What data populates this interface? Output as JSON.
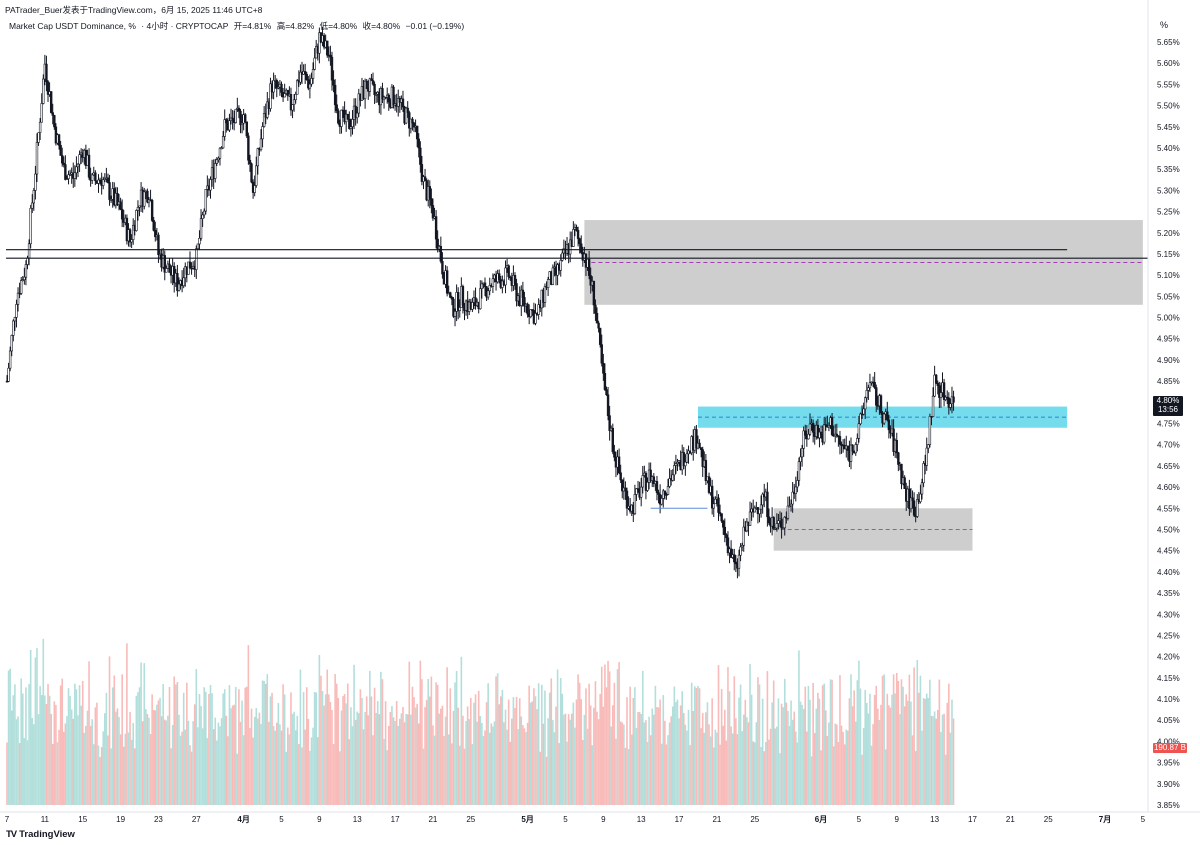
{
  "header": {
    "author": "PATrader_Buer发表于TradingView.com，6月 15, 2025 11:46 UTC+8",
    "symbol": "Market Cap USDT Dominance, %",
    "interval": "· 4小时 · CRYPTOCAP",
    "open": "开=4.81%",
    "high": "高=4.82%",
    "low": "低=4.80%",
    "close": "收=4.80%",
    "change": "−0.01 (−0.19%)"
  },
  "price_axis": {
    "unit": "%",
    "ticks": [
      "5.65%",
      "5.60%",
      "5.55%",
      "5.50%",
      "5.45%",
      "5.40%",
      "5.35%",
      "5.30%",
      "5.25%",
      "5.20%",
      "5.15%",
      "5.10%",
      "5.05%",
      "5.00%",
      "4.95%",
      "4.90%",
      "4.85%",
      "4.80%",
      "4.75%",
      "4.70%",
      "4.65%",
      "4.60%",
      "4.55%",
      "4.50%",
      "4.45%",
      "4.40%",
      "4.35%",
      "4.30%",
      "4.25%",
      "4.20%",
      "4.15%",
      "4.10%",
      "4.05%",
      "4.00%",
      "3.95%",
      "3.90%",
      "3.85%"
    ],
    "last_price": "4.80%",
    "countdown": "13:56",
    "volume_value": "190.87 B"
  },
  "time_axis": {
    "labels": [
      "7",
      "11",
      "15",
      "19",
      "23",
      "27",
      "4月",
      "5",
      "9",
      "13",
      "17",
      "21",
      "25",
      "5月",
      "5",
      "9",
      "13",
      "17",
      "21",
      "25",
      "6月",
      "5",
      "9",
      "13",
      "17",
      "21",
      "25",
      "7月",
      "5"
    ]
  },
  "branding": {
    "name": "TradingView",
    "mark": "TV"
  },
  "colors": {
    "up": "#26a69a",
    "down": "#ef5350",
    "candle_body": "#131722",
    "gray_zone": "#bdbdbd",
    "cyan_zone": "#5dd6ea",
    "dashed_line": "#9c27b0"
  },
  "chart_data": {
    "type": "candlestick",
    "symbol": "Market Cap USDT Dominance",
    "interval": "4小时",
    "y_unit": "%",
    "ylim": [
      3.85,
      5.67
    ],
    "x_range": [
      "2025-03-07",
      "2025-07-05"
    ],
    "last_close": 4.8,
    "path_points": [
      [
        "03-07",
        4.85
      ],
      [
        "03-08",
        5.05
      ],
      [
        "03-09",
        5.12
      ],
      [
        "03-10",
        5.35
      ],
      [
        "03-11",
        5.6
      ],
      [
        "03-12",
        5.45
      ],
      [
        "03-13",
        5.35
      ],
      [
        "03-14",
        5.33
      ],
      [
        "03-15",
        5.4
      ],
      [
        "03-16",
        5.32
      ],
      [
        "03-17",
        5.33
      ],
      [
        "03-19",
        5.25
      ],
      [
        "03-20",
        5.18
      ],
      [
        "03-21",
        5.28
      ],
      [
        "03-22",
        5.3
      ],
      [
        "03-23",
        5.15
      ],
      [
        "03-25",
        5.08
      ],
      [
        "03-26",
        5.12
      ],
      [
        "03-27",
        5.14
      ],
      [
        "03-28",
        5.28
      ],
      [
        "03-30",
        5.45
      ],
      [
        "04-01",
        5.48
      ],
      [
        "04-02",
        5.3
      ],
      [
        "04-03",
        5.45
      ],
      [
        "04-04",
        5.55
      ],
      [
        "04-06",
        5.5
      ],
      [
        "04-07",
        5.58
      ],
      [
        "04-08",
        5.55
      ],
      [
        "04-09",
        5.66
      ],
      [
        "04-10",
        5.62
      ],
      [
        "04-11",
        5.48
      ],
      [
        "04-12",
        5.45
      ],
      [
        "04-13",
        5.5
      ],
      [
        "04-14",
        5.55
      ],
      [
        "04-15",
        5.52
      ],
      [
        "04-17",
        5.52
      ],
      [
        "04-18",
        5.48
      ],
      [
        "04-19",
        5.45
      ],
      [
        "04-20",
        5.32
      ],
      [
        "04-21",
        5.25
      ],
      [
        "04-22",
        5.12
      ],
      [
        "04-23",
        5.02
      ],
      [
        "04-24",
        5.05
      ],
      [
        "04-25",
        5.02
      ],
      [
        "04-27",
        5.08
      ],
      [
        "04-29",
        5.1
      ],
      [
        "04-30",
        5.05
      ],
      [
        "05-02",
        5.0
      ],
      [
        "05-03",
        5.08
      ],
      [
        "05-04",
        5.1
      ],
      [
        "05-05",
        5.15
      ],
      [
        "05-06",
        5.2
      ],
      [
        "05-07",
        5.15
      ],
      [
        "05-08",
        5.05
      ],
      [
        "05-09",
        4.85
      ],
      [
        "05-10",
        4.7
      ],
      [
        "05-11",
        4.6
      ],
      [
        "05-12",
        4.55
      ],
      [
        "05-13",
        4.6
      ],
      [
        "05-14",
        4.63
      ],
      [
        "05-15",
        4.58
      ],
      [
        "05-16",
        4.62
      ],
      [
        "05-17",
        4.65
      ],
      [
        "05-18",
        4.7
      ],
      [
        "05-19",
        4.72
      ],
      [
        "05-20",
        4.6
      ],
      [
        "05-21",
        4.55
      ],
      [
        "05-22",
        4.48
      ],
      [
        "05-23",
        4.4
      ],
      [
        "05-24",
        4.5
      ],
      [
        "05-25",
        4.55
      ],
      [
        "05-26",
        4.58
      ],
      [
        "05-27",
        4.5
      ],
      [
        "05-28",
        4.52
      ],
      [
        "05-29",
        4.58
      ],
      [
        "05-30",
        4.7
      ],
      [
        "05-31",
        4.75
      ],
      [
        "06-01",
        4.72
      ],
      [
        "06-02",
        4.75
      ],
      [
        "06-03",
        4.7
      ],
      [
        "06-04",
        4.68
      ],
      [
        "06-05",
        4.73
      ],
      [
        "06-06",
        4.85
      ],
      [
        "06-07",
        4.8
      ],
      [
        "06-08",
        4.75
      ],
      [
        "06-09",
        4.68
      ],
      [
        "06-10",
        4.58
      ],
      [
        "06-11",
        4.55
      ],
      [
        "06-12",
        4.65
      ],
      [
        "06-13",
        4.85
      ],
      [
        "06-14",
        4.82
      ],
      [
        "06-15",
        4.8
      ]
    ],
    "zones": [
      {
        "type": "gray",
        "from": "05-07",
        "to": "07-05",
        "low": 5.03,
        "high": 5.23,
        "mid": 5.13
      },
      {
        "type": "cyan",
        "from": "05-19",
        "to": "06-27",
        "low": 4.74,
        "high": 4.79,
        "mid": 4.765
      },
      {
        "type": "gray",
        "from": "05-27",
        "to": "06-17",
        "low": 4.45,
        "high": 4.55,
        "mid": 4.5
      }
    ],
    "horizontal_lines": [
      5.16,
      5.14
    ],
    "blue_segment": {
      "from": "05-14",
      "to": "05-20",
      "value": 4.55
    }
  }
}
